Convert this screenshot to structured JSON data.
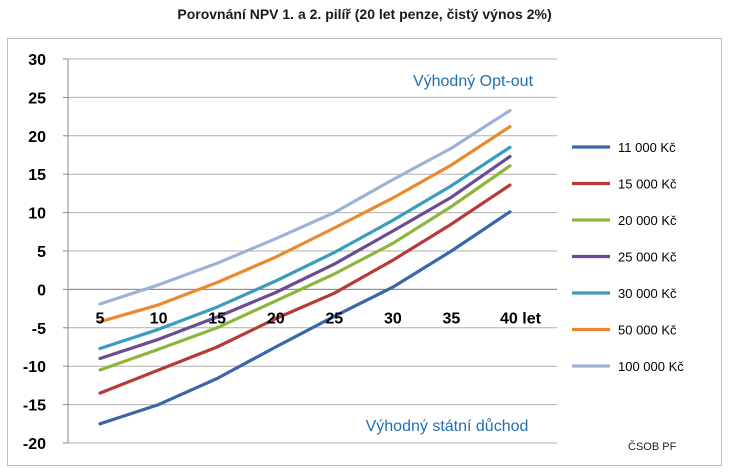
{
  "title": "Porovnání NPV 1. a 2. pilíř (20 let penze, čistý výnos 2%)",
  "source_note": "ČSOB PF",
  "chart_data": {
    "type": "line",
    "title": "Porovnání NPV 1. a 2. pilíř (20 let penze, čistý výnos 2%)",
    "x": [
      5,
      10,
      15,
      20,
      25,
      30,
      35,
      40
    ],
    "x_tick_labels": [
      "5",
      "10",
      "15",
      "20",
      "25",
      "30",
      "35",
      "40 let"
    ],
    "ylim": [
      -20,
      30
    ],
    "y_ticks": [
      -20,
      -15,
      -10,
      -5,
      0,
      5,
      10,
      15,
      20,
      25,
      30
    ],
    "grid": true,
    "legend_position": "right",
    "annotations": {
      "top": "Výhodný Opt-out",
      "bottom": "Výhodný státní důchod"
    },
    "series": [
      {
        "name": "11 000 Kč",
        "color": "#3a67a8",
        "values": [
          -17.5,
          -15.0,
          -11.6,
          -7.5,
          -3.5,
          0.3,
          5.0,
          10.1
        ]
      },
      {
        "name": "15 000 Kč",
        "color": "#b53b39",
        "values": [
          -13.5,
          -10.5,
          -7.5,
          -3.8,
          -0.5,
          3.8,
          8.5,
          13.6
        ]
      },
      {
        "name": "20 000 Kč",
        "color": "#8db63d",
        "values": [
          -10.5,
          -7.8,
          -5.0,
          -1.5,
          2.0,
          6.0,
          10.8,
          16.1
        ]
      },
      {
        "name": "25 000 Kč",
        "color": "#6b4c94",
        "values": [
          -9.0,
          -6.5,
          -3.6,
          -0.4,
          3.3,
          7.6,
          12.0,
          17.3
        ]
      },
      {
        "name": "30 000 Kč",
        "color": "#3a9dbb",
        "values": [
          -7.7,
          -5.2,
          -2.3,
          1.1,
          4.8,
          9.0,
          13.5,
          18.5
        ]
      },
      {
        "name": "50 000 Kč",
        "color": "#ea8a2e",
        "values": [
          -4.2,
          -2.0,
          0.9,
          4.2,
          8.0,
          11.9,
          16.2,
          21.2
        ]
      },
      {
        "name": "100 000 Kč",
        "color": "#9db3d6",
        "values": [
          -1.9,
          0.6,
          3.4,
          6.6,
          10.0,
          14.3,
          18.4,
          23.3
        ]
      }
    ]
  }
}
